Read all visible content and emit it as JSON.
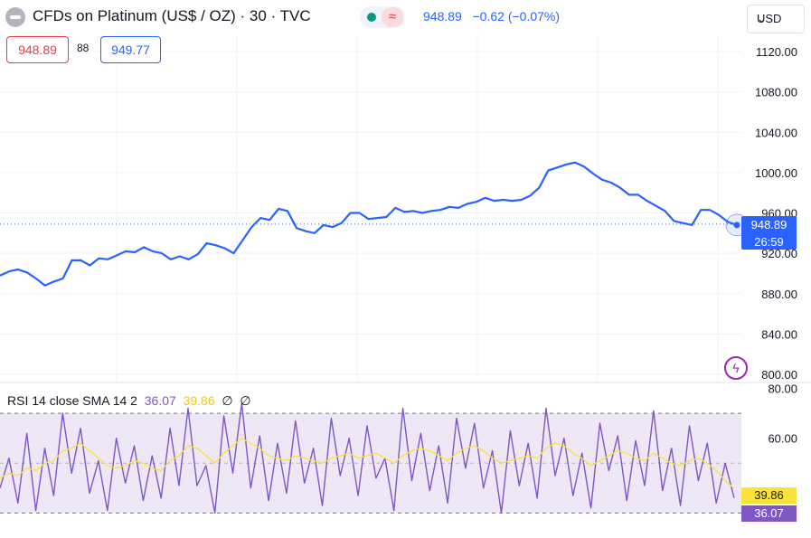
{
  "header": {
    "title": "CFDs on Platinum (US$ / OZ) · 30 · TVC",
    "last_price": "948.89",
    "change": "−0.62",
    "change_pct": "(−0.07%)",
    "market_status_icon": "market-open-dot-icon",
    "wave_icon": "approx-wave-icon",
    "symbol_logo_icon": "symbol-logo-icon"
  },
  "trade": {
    "sell": "948.89",
    "spread": "88",
    "buy": "949.77"
  },
  "currency": {
    "label": "USD",
    "icon": "chevron-down-icon"
  },
  "price_tag": {
    "price": "948.89",
    "countdown": "26:59"
  },
  "rsi_tags": {
    "sma": "39.86",
    "rsi": "36.07"
  },
  "rsi_legend": {
    "name": "RSI 14 close SMA 14 2",
    "rsi_value": "36.07",
    "sma_value": "39.86",
    "extra1": "∅",
    "extra2": "∅"
  },
  "colors": {
    "price_line": "#2962ff",
    "rsi_line": "#7e57c2",
    "sma_line": "#f9e33b",
    "rsi_band": "#ede7f6",
    "sell": "#f23645",
    "buy": "#2962ff"
  },
  "chart_data": [
    {
      "type": "line",
      "title": "CFDs on Platinum (US$ / OZ) · 30 · TVC",
      "y_ticks": [
        "1120.00",
        "1080.00",
        "1040.00",
        "1000.00",
        "960.00",
        "920.00",
        "880.00",
        "840.00",
        "800.00"
      ],
      "ylim": [
        800,
        1120
      ],
      "grid": true,
      "last_value": 948.89,
      "series": [
        {
          "name": "",
          "y": [
            898,
            902,
            904,
            901,
            895,
            888,
            892,
            895,
            913,
            913,
            908,
            915,
            914,
            918,
            922,
            921,
            926,
            922,
            920,
            914,
            917,
            914,
            919,
            930,
            928,
            925,
            920,
            933,
            946,
            955,
            953,
            964,
            962,
            945,
            942,
            940,
            948,
            946,
            950,
            960,
            960,
            954,
            955,
            956,
            965,
            961,
            962,
            960,
            962,
            963,
            966,
            965,
            969,
            971,
            975,
            972,
            973,
            972,
            973,
            977,
            985,
            1002,
            1005,
            1008,
            1010,
            1006,
            999,
            993,
            990,
            985,
            978,
            978,
            972,
            967,
            962,
            952,
            950,
            948,
            963,
            963,
            958,
            951,
            948
          ]
        }
      ]
    },
    {
      "type": "line",
      "title": "RSI 14 close SMA 14 2",
      "y_ticks": [
        "80.00",
        "60.00"
      ],
      "ylim": [
        20,
        82
      ],
      "band": [
        30,
        70
      ],
      "grid": true,
      "series": [
        {
          "name": "RSI 14 close",
          "y": [
            40,
            52,
            34,
            62,
            31,
            56,
            37,
            70,
            46,
            64,
            38,
            51,
            31,
            60,
            42,
            57,
            35,
            53,
            36,
            64,
            41,
            72,
            41,
            49,
            30,
            69,
            46,
            74,
            40,
            61,
            35,
            58,
            38,
            67,
            42,
            56,
            33,
            68,
            45,
            60,
            37,
            65,
            44,
            52,
            31,
            72,
            43,
            62,
            39,
            57,
            34,
            68,
            48,
            66,
            40,
            55,
            30,
            63,
            41,
            58,
            36,
            72,
            45,
            60,
            37,
            54,
            32,
            66,
            47,
            61,
            35,
            59,
            41,
            71,
            39,
            56,
            33,
            65,
            43,
            58,
            34,
            50,
            36.07
          ]
        },
        {
          "name": "SMA 14",
          "y": [
            44,
            46,
            45,
            48,
            47,
            50,
            51,
            55,
            56,
            58,
            55,
            52,
            49,
            48,
            49,
            51,
            50,
            48,
            47,
            51,
            53,
            57,
            56,
            53,
            50,
            54,
            57,
            60,
            58,
            56,
            53,
            52,
            51,
            53,
            52,
            51,
            50,
            52,
            53,
            54,
            52,
            53,
            54,
            52,
            50,
            53,
            55,
            56,
            55,
            53,
            51,
            54,
            56,
            57,
            55,
            52,
            50,
            51,
            52,
            53,
            52,
            56,
            58,
            57,
            54,
            52,
            49,
            51,
            53,
            55,
            54,
            52,
            51,
            54,
            52,
            50,
            49,
            51,
            52,
            50,
            47,
            43,
            39.86
          ]
        }
      ]
    }
  ]
}
